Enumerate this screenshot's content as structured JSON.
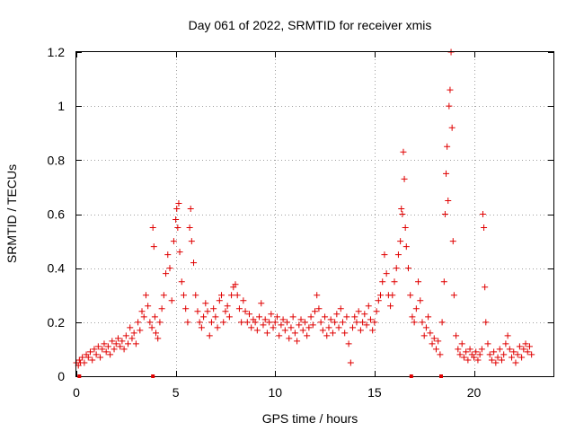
{
  "chart_data": {
    "type": "scatter",
    "title": "Day 061 of 2022, SRMTID for receiver xmis",
    "xlabel": "GPS time / hours",
    "ylabel": "SRMTID / TECUs",
    "xlim": [
      0,
      24
    ],
    "ylim": [
      0,
      1.2
    ],
    "x_ticks": [
      0,
      5,
      10,
      15,
      20
    ],
    "y_ticks": [
      0,
      0.2,
      0.4,
      0.6,
      0.8,
      1,
      1.2
    ],
    "x_tick_labels": [
      "0",
      "5",
      "10",
      "15",
      "20"
    ],
    "y_tick_labels": [
      "0",
      "0.2",
      "0.4",
      "0.6",
      "0.8",
      "1",
      "1.2"
    ],
    "grid": true,
    "marker": "+",
    "series_color": "#e00000",
    "gap_markers_x": [
      0.15,
      3.85,
      16.85,
      18.35
    ],
    "series": [
      {
        "name": "SRMTID",
        "points": [
          [
            0.0,
            0.05
          ],
          [
            0.1,
            0.04
          ],
          [
            0.15,
            0.06
          ],
          [
            0.2,
            0.05
          ],
          [
            0.3,
            0.07
          ],
          [
            0.4,
            0.05
          ],
          [
            0.5,
            0.08
          ],
          [
            0.6,
            0.07
          ],
          [
            0.7,
            0.09
          ],
          [
            0.8,
            0.06
          ],
          [
            0.9,
            0.1
          ],
          [
            1.0,
            0.08
          ],
          [
            1.1,
            0.11
          ],
          [
            1.2,
            0.07
          ],
          [
            1.3,
            0.1
          ],
          [
            1.4,
            0.12
          ],
          [
            1.5,
            0.09
          ],
          [
            1.6,
            0.11
          ],
          [
            1.7,
            0.08
          ],
          [
            1.8,
            0.13
          ],
          [
            1.9,
            0.1
          ],
          [
            2.0,
            0.12
          ],
          [
            2.1,
            0.14
          ],
          [
            2.2,
            0.11
          ],
          [
            2.3,
            0.13
          ],
          [
            2.4,
            0.1
          ],
          [
            2.5,
            0.15
          ],
          [
            2.6,
            0.12
          ],
          [
            2.7,
            0.18
          ],
          [
            2.8,
            0.14
          ],
          [
            2.9,
            0.16
          ],
          [
            3.0,
            0.12
          ],
          [
            3.1,
            0.2
          ],
          [
            3.2,
            0.17
          ],
          [
            3.3,
            0.24
          ],
          [
            3.4,
            0.22
          ],
          [
            3.5,
            0.3
          ],
          [
            3.6,
            0.26
          ],
          [
            3.7,
            0.2
          ],
          [
            3.8,
            0.18
          ],
          [
            3.85,
            0.55
          ],
          [
            3.9,
            0.48
          ],
          [
            3.95,
            0.22
          ],
          [
            4.0,
            0.16
          ],
          [
            4.1,
            0.14
          ],
          [
            4.2,
            0.2
          ],
          [
            4.3,
            0.25
          ],
          [
            4.4,
            0.3
          ],
          [
            4.5,
            0.38
          ],
          [
            4.6,
            0.45
          ],
          [
            4.7,
            0.4
          ],
          [
            4.8,
            0.28
          ],
          [
            4.9,
            0.5
          ],
          [
            5.0,
            0.58
          ],
          [
            5.05,
            0.62
          ],
          [
            5.1,
            0.55
          ],
          [
            5.15,
            0.64
          ],
          [
            5.2,
            0.46
          ],
          [
            5.3,
            0.35
          ],
          [
            5.4,
            0.3
          ],
          [
            5.5,
            0.25
          ],
          [
            5.6,
            0.2
          ],
          [
            5.7,
            0.55
          ],
          [
            5.75,
            0.62
          ],
          [
            5.8,
            0.5
          ],
          [
            5.9,
            0.42
          ],
          [
            6.0,
            0.3
          ],
          [
            6.1,
            0.24
          ],
          [
            6.2,
            0.2
          ],
          [
            6.3,
            0.18
          ],
          [
            6.4,
            0.22
          ],
          [
            6.5,
            0.27
          ],
          [
            6.6,
            0.24
          ],
          [
            6.7,
            0.15
          ],
          [
            6.8,
            0.2
          ],
          [
            6.9,
            0.25
          ],
          [
            7.0,
            0.22
          ],
          [
            7.1,
            0.18
          ],
          [
            7.2,
            0.28
          ],
          [
            7.3,
            0.3
          ],
          [
            7.4,
            0.2
          ],
          [
            7.5,
            0.24
          ],
          [
            7.6,
            0.26
          ],
          [
            7.7,
            0.22
          ],
          [
            7.8,
            0.3
          ],
          [
            7.9,
            0.33
          ],
          [
            8.0,
            0.34
          ],
          [
            8.1,
            0.3
          ],
          [
            8.2,
            0.25
          ],
          [
            8.3,
            0.2
          ],
          [
            8.4,
            0.28
          ],
          [
            8.5,
            0.24
          ],
          [
            8.6,
            0.2
          ],
          [
            8.7,
            0.23
          ],
          [
            8.8,
            0.18
          ],
          [
            8.9,
            0.21
          ],
          [
            9.0,
            0.2
          ],
          [
            9.1,
            0.17
          ],
          [
            9.2,
            0.22
          ],
          [
            9.3,
            0.27
          ],
          [
            9.4,
            0.19
          ],
          [
            9.5,
            0.21
          ],
          [
            9.6,
            0.16
          ],
          [
            9.7,
            0.2
          ],
          [
            9.8,
            0.23
          ],
          [
            9.9,
            0.18
          ],
          [
            10.0,
            0.2
          ],
          [
            10.1,
            0.22
          ],
          [
            10.2,
            0.15
          ],
          [
            10.3,
            0.19
          ],
          [
            10.4,
            0.21
          ],
          [
            10.5,
            0.17
          ],
          [
            10.6,
            0.2
          ],
          [
            10.7,
            0.14
          ],
          [
            10.8,
            0.18
          ],
          [
            10.9,
            0.22
          ],
          [
            11.0,
            0.16
          ],
          [
            11.1,
            0.13
          ],
          [
            11.2,
            0.19
          ],
          [
            11.3,
            0.21
          ],
          [
            11.4,
            0.17
          ],
          [
            11.5,
            0.2
          ],
          [
            11.6,
            0.15
          ],
          [
            11.7,
            0.18
          ],
          [
            11.8,
            0.22
          ],
          [
            11.9,
            0.19
          ],
          [
            12.0,
            0.24
          ],
          [
            12.1,
            0.3
          ],
          [
            12.2,
            0.25
          ],
          [
            12.3,
            0.2
          ],
          [
            12.4,
            0.17
          ],
          [
            12.5,
            0.22
          ],
          [
            12.6,
            0.15
          ],
          [
            12.7,
            0.18
          ],
          [
            12.8,
            0.21
          ],
          [
            12.9,
            0.16
          ],
          [
            13.0,
            0.2
          ],
          [
            13.1,
            0.23
          ],
          [
            13.2,
            0.18
          ],
          [
            13.3,
            0.25
          ],
          [
            13.4,
            0.2
          ],
          [
            13.5,
            0.16
          ],
          [
            13.6,
            0.22
          ],
          [
            13.7,
            0.12
          ],
          [
            13.8,
            0.05
          ],
          [
            13.9,
            0.18
          ],
          [
            14.0,
            0.22
          ],
          [
            14.1,
            0.2
          ],
          [
            14.2,
            0.24
          ],
          [
            14.3,
            0.17
          ],
          [
            14.4,
            0.2
          ],
          [
            14.5,
            0.23
          ],
          [
            14.6,
            0.19
          ],
          [
            14.7,
            0.26
          ],
          [
            14.8,
            0.21
          ],
          [
            14.9,
            0.17
          ],
          [
            15.0,
            0.2
          ],
          [
            15.1,
            0.24
          ],
          [
            15.2,
            0.28
          ],
          [
            15.3,
            0.3
          ],
          [
            15.4,
            0.35
          ],
          [
            15.5,
            0.45
          ],
          [
            15.6,
            0.38
          ],
          [
            15.7,
            0.3
          ],
          [
            15.8,
            0.26
          ],
          [
            15.9,
            0.3
          ],
          [
            16.0,
            0.35
          ],
          [
            16.1,
            0.4
          ],
          [
            16.2,
            0.45
          ],
          [
            16.3,
            0.5
          ],
          [
            16.35,
            0.62
          ],
          [
            16.4,
            0.6
          ],
          [
            16.45,
            0.83
          ],
          [
            16.5,
            0.73
          ],
          [
            16.55,
            0.55
          ],
          [
            16.6,
            0.48
          ],
          [
            16.7,
            0.4
          ],
          [
            16.8,
            0.3
          ],
          [
            16.9,
            0.22
          ],
          [
            17.0,
            0.2
          ],
          [
            17.1,
            0.25
          ],
          [
            17.2,
            0.35
          ],
          [
            17.3,
            0.28
          ],
          [
            17.4,
            0.2
          ],
          [
            17.5,
            0.15
          ],
          [
            17.6,
            0.18
          ],
          [
            17.7,
            0.22
          ],
          [
            17.8,
            0.16
          ],
          [
            17.9,
            0.12
          ],
          [
            18.0,
            0.14
          ],
          [
            18.1,
            0.1
          ],
          [
            18.2,
            0.13
          ],
          [
            18.3,
            0.08
          ],
          [
            18.4,
            0.2
          ],
          [
            18.5,
            0.35
          ],
          [
            18.55,
            0.6
          ],
          [
            18.6,
            0.75
          ],
          [
            18.65,
            0.85
          ],
          [
            18.7,
            0.65
          ],
          [
            18.75,
            1.0
          ],
          [
            18.8,
            1.06
          ],
          [
            18.85,
            1.2
          ],
          [
            18.9,
            0.92
          ],
          [
            18.95,
            0.5
          ],
          [
            19.0,
            0.3
          ],
          [
            19.1,
            0.15
          ],
          [
            19.2,
            0.1
          ],
          [
            19.3,
            0.08
          ],
          [
            19.4,
            0.12
          ],
          [
            19.5,
            0.07
          ],
          [
            19.6,
            0.09
          ],
          [
            19.7,
            0.06
          ],
          [
            19.8,
            0.1
          ],
          [
            19.9,
            0.08
          ],
          [
            20.0,
            0.07
          ],
          [
            20.1,
            0.09
          ],
          [
            20.2,
            0.06
          ],
          [
            20.3,
            0.08
          ],
          [
            20.4,
            0.1
          ],
          [
            20.45,
            0.6
          ],
          [
            20.5,
            0.55
          ],
          [
            20.55,
            0.33
          ],
          [
            20.6,
            0.2
          ],
          [
            20.7,
            0.12
          ],
          [
            20.8,
            0.08
          ],
          [
            20.9,
            0.06
          ],
          [
            21.0,
            0.09
          ],
          [
            21.1,
            0.05
          ],
          [
            21.2,
            0.07
          ],
          [
            21.3,
            0.1
          ],
          [
            21.4,
            0.06
          ],
          [
            21.5,
            0.08
          ],
          [
            21.6,
            0.12
          ],
          [
            21.7,
            0.15
          ],
          [
            21.8,
            0.1
          ],
          [
            21.9,
            0.07
          ],
          [
            22.0,
            0.09
          ],
          [
            22.1,
            0.05
          ],
          [
            22.2,
            0.08
          ],
          [
            22.3,
            0.11
          ],
          [
            22.4,
            0.07
          ],
          [
            22.5,
            0.1
          ],
          [
            22.6,
            0.12
          ],
          [
            22.7,
            0.09
          ],
          [
            22.8,
            0.11
          ],
          [
            22.9,
            0.08
          ]
        ]
      }
    ]
  }
}
